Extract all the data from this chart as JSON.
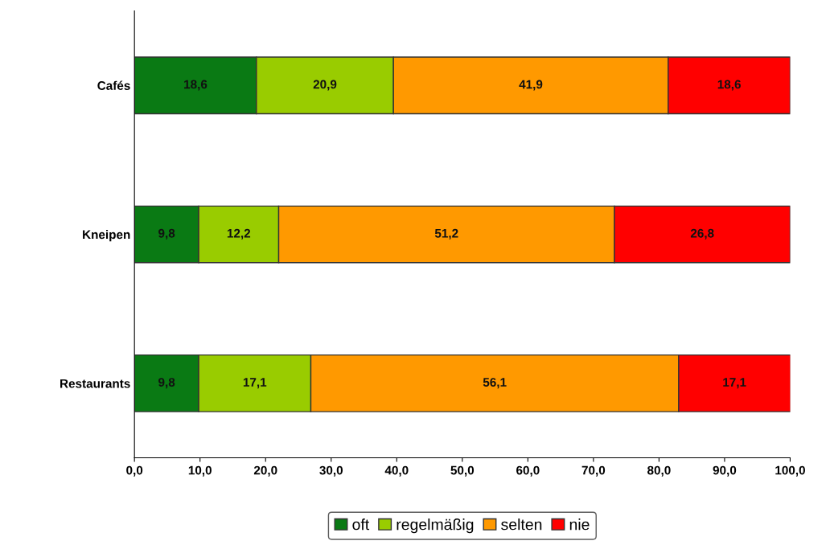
{
  "chart_data": {
    "type": "bar",
    "orientation": "horizontal",
    "stacked": true,
    "categories": [
      "Cafés",
      "Kneipen",
      "Restaurants"
    ],
    "series": [
      {
        "name": "oft",
        "color": "#0a7a14",
        "values": [
          18.6,
          9.8,
          9.8
        ],
        "value_labels": [
          "18,6",
          "9,8",
          "9,8"
        ]
      },
      {
        "name": "regelmäßig",
        "color": "#99cc00",
        "values": [
          20.9,
          12.2,
          17.1
        ],
        "value_labels": [
          "20,9",
          "12,2",
          "17,1"
        ]
      },
      {
        "name": "selten",
        "color": "#ff9900",
        "values": [
          41.9,
          51.2,
          56.1
        ],
        "value_labels": [
          "41,9",
          "51,2",
          "56,1"
        ]
      },
      {
        "name": "nie",
        "color": "#ff0000",
        "values": [
          18.6,
          26.8,
          17.1
        ],
        "value_labels": [
          "18,6",
          "26,8",
          "17,1"
        ]
      }
    ],
    "xlim": [
      0,
      100
    ],
    "xticks": [
      {
        "value": 0,
        "label": "0,0"
      },
      {
        "value": 10,
        "label": "10,0"
      },
      {
        "value": 20,
        "label": "20,0"
      },
      {
        "value": 30,
        "label": "30,0"
      },
      {
        "value": 40,
        "label": "40,0"
      },
      {
        "value": 50,
        "label": "50,0"
      },
      {
        "value": 60,
        "label": "60,0"
      },
      {
        "value": 70,
        "label": "70,0"
      },
      {
        "value": 80,
        "label": "80,0"
      },
      {
        "value": 90,
        "label": "90,0"
      },
      {
        "value": 100,
        "label": "100,0"
      }
    ],
    "legend": "bottom",
    "grid": false
  }
}
